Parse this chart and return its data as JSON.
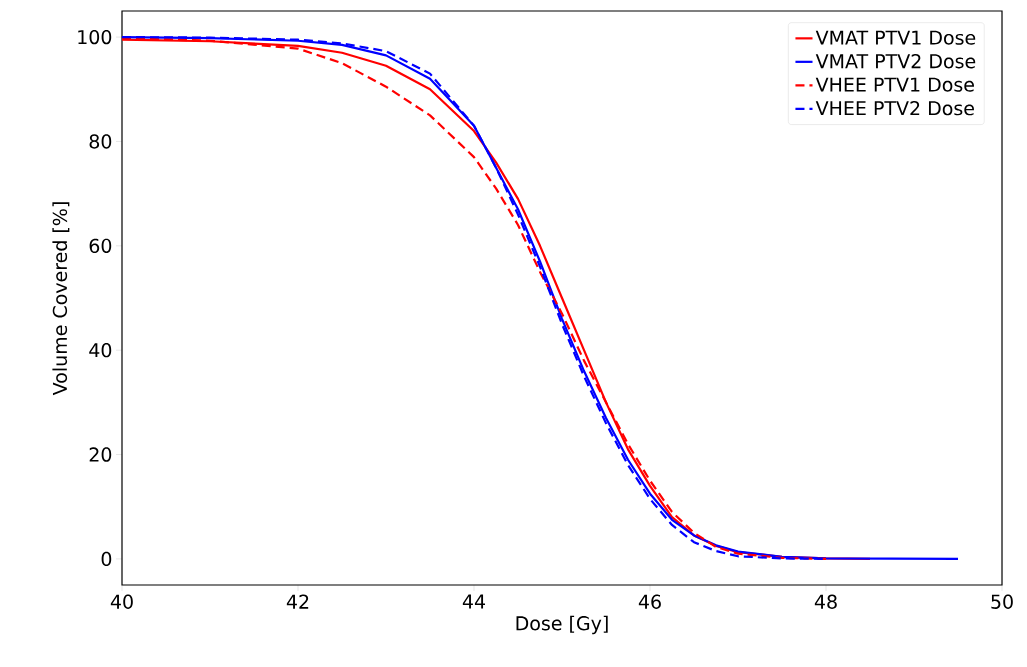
{
  "chart_data": {
    "type": "line",
    "xlabel": "Dose [Gy]",
    "ylabel": "Volume Covered [%]",
    "xlim": [
      40,
      50
    ],
    "ylim": [
      -5,
      105
    ],
    "xticks": [
      40,
      42,
      44,
      46,
      48,
      50
    ],
    "yticks": [
      0,
      20,
      40,
      60,
      80,
      100
    ],
    "grid": false,
    "legend": "top right",
    "marker": "none",
    "series": [
      {
        "name": "VMAT PTV1 Dose",
        "color": "#ff0000",
        "line_style": "solid",
        "x": [
          40,
          41,
          42,
          42.5,
          43,
          43.5,
          44,
          44.25,
          44.5,
          44.75,
          45,
          45.25,
          45.5,
          45.75,
          46,
          46.25,
          46.5,
          46.75,
          47,
          47.5,
          48,
          48.5
        ],
        "values": [
          99.5,
          99.2,
          98.3,
          97,
          94.5,
          90,
          82,
          76,
          69,
          60,
          50,
          40,
          30,
          21,
          14,
          8,
          4.5,
          2.5,
          1.3,
          0.4,
          0.1,
          0
        ]
      },
      {
        "name": "VMAT PTV2 Dose",
        "color": "#0000ff",
        "line_style": "solid",
        "x": [
          40,
          41,
          42,
          42.5,
          43,
          43.5,
          44,
          44.25,
          44.5,
          44.75,
          45,
          45.25,
          45.5,
          45.75,
          46,
          46.25,
          46.5,
          46.75,
          47,
          47.5,
          48,
          49.5
        ],
        "values": [
          100,
          99.8,
          99.3,
          98.5,
          96.5,
          92,
          83,
          75,
          67,
          57,
          46,
          36,
          27,
          19,
          12.5,
          7.5,
          4.5,
          2.6,
          1.4,
          0.4,
          0.1,
          0
        ]
      },
      {
        "name": "VHEE PTV1 Dose",
        "color": "#ff0000",
        "line_style": "dashed",
        "x": [
          40,
          41,
          42,
          42.5,
          43,
          43.5,
          44,
          44.25,
          44.5,
          44.75,
          45,
          45.25,
          45.5,
          45.75,
          46,
          46.25,
          46.5,
          46.75,
          47,
          47.5,
          48
        ],
        "values": [
          99.8,
          99.3,
          97.8,
          95,
          90.5,
          85,
          77,
          71,
          64,
          55,
          47,
          38,
          30,
          22,
          15,
          9,
          5,
          2.3,
          1,
          0.2,
          0
        ]
      },
      {
        "name": "VHEE PTV2 Dose",
        "color": "#0000ff",
        "line_style": "dashed",
        "x": [
          40,
          41,
          42,
          42.5,
          43,
          43.5,
          44,
          44.25,
          44.5,
          44.75,
          45,
          45.25,
          45.5,
          45.75,
          46,
          46.25,
          46.5,
          46.75,
          47,
          47.5,
          48
        ],
        "values": [
          100,
          99.9,
          99.5,
          98.8,
          97.3,
          93,
          83,
          75,
          66,
          56,
          45,
          35,
          26,
          18,
          11.5,
          6.5,
          3.2,
          1.5,
          0.5,
          0.1,
          0
        ]
      }
    ]
  }
}
